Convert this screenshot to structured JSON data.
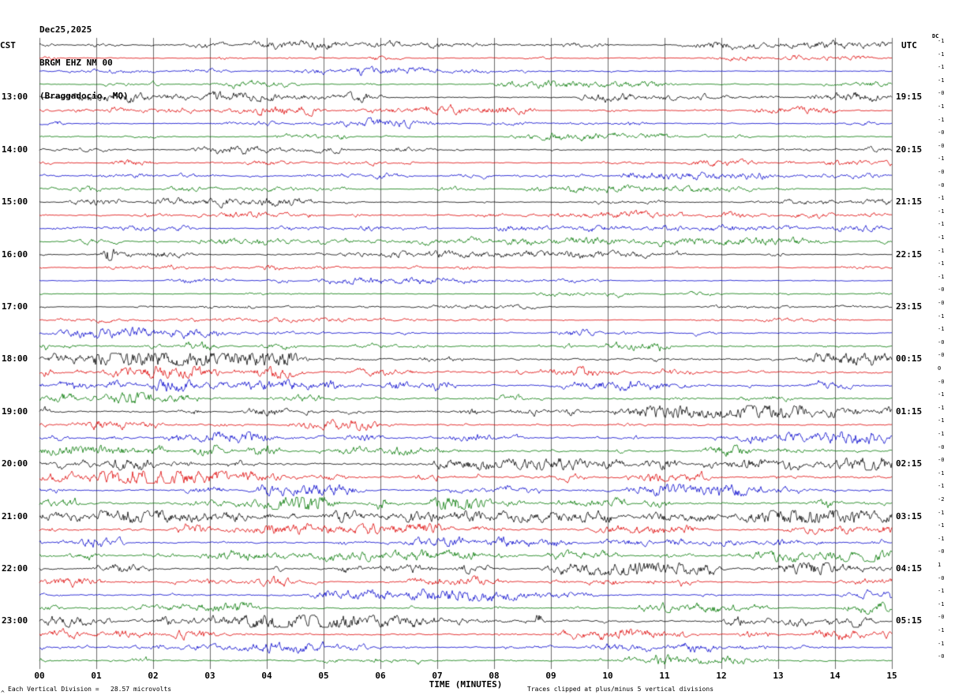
{
  "header": {
    "date": "Dec25,2025",
    "station": "BRGM EHZ NM 00",
    "location": "(Braggadocio, MO)"
  },
  "axes": {
    "left_label": "CST",
    "right_label": "UTC",
    "dc_label": "DC",
    "x_title": "TIME (MINUTES)",
    "x_ticks": [
      "00",
      "01",
      "02",
      "03",
      "04",
      "05",
      "06",
      "07",
      "08",
      "09",
      "10",
      "11",
      "12",
      "13",
      "14",
      "15"
    ]
  },
  "footer": {
    "scale_note": "Each Vertical Division =   28.57 microvolts",
    "clip_note": "Traces clipped at plus/minus 5 vertical divisions",
    "corner_mark": "^"
  },
  "chart_data": {
    "type": "line",
    "title": "Helicorder seismogram BRGM EHZ NM 00 (Braggadocio, MO) Dec25,2025",
    "x_range_minutes": [
      0,
      15
    ],
    "minutes_per_row": 15,
    "rows": 48,
    "start_cst": "12:00",
    "grid": true,
    "grid_color": "#6b6b6b",
    "colors": {
      "black": "#000000",
      "red": "#dd0000",
      "blue": "#0000cc",
      "green": "#007700"
    },
    "hour_labels": [
      {
        "row": 4,
        "cst": "13:00",
        "utc": "19:15"
      },
      {
        "row": 8,
        "cst": "14:00",
        "utc": "20:15"
      },
      {
        "row": 12,
        "cst": "15:00",
        "utc": "21:15"
      },
      {
        "row": 16,
        "cst": "16:00",
        "utc": "22:15"
      },
      {
        "row": 20,
        "cst": "17:00",
        "utc": "23:15"
      },
      {
        "row": 24,
        "cst": "18:00",
        "utc": "00:15"
      },
      {
        "row": 28,
        "cst": "19:00",
        "utc": "01:15"
      },
      {
        "row": 32,
        "cst": "20:00",
        "utc": "02:15"
      },
      {
        "row": 36,
        "cst": "21:00",
        "utc": "03:15"
      },
      {
        "row": 40,
        "cst": "22:00",
        "utc": "04:15"
      },
      {
        "row": 44,
        "cst": "23:00",
        "utc": "05:15"
      }
    ],
    "traces": [
      {
        "c": "black",
        "a": 0.55,
        "dc": "-1"
      },
      {
        "c": "red",
        "a": 0.55,
        "dc": "-1"
      },
      {
        "c": "blue",
        "a": 0.5,
        "dc": "-1"
      },
      {
        "c": "green",
        "a": 0.5,
        "dc": "-1"
      },
      {
        "c": "black",
        "a": 0.65,
        "dc": "-0"
      },
      {
        "c": "red",
        "a": 0.6,
        "dc": "-1"
      },
      {
        "c": "blue",
        "a": 0.55,
        "dc": "-1"
      },
      {
        "c": "green",
        "a": 0.55,
        "dc": "-0"
      },
      {
        "c": "black",
        "a": 0.5,
        "dc": "-0"
      },
      {
        "c": "red",
        "a": 0.55,
        "dc": "-1"
      },
      {
        "c": "blue",
        "a": 0.45,
        "dc": "-0"
      },
      {
        "c": "green",
        "a": 0.45,
        "dc": "-0"
      },
      {
        "c": "black",
        "a": 0.55,
        "dc": "-1"
      },
      {
        "c": "red",
        "a": 0.5,
        "dc": "-1"
      },
      {
        "c": "blue",
        "a": 0.5,
        "dc": "-1"
      },
      {
        "c": "green",
        "a": 0.5,
        "dc": "-1"
      },
      {
        "c": "black",
        "a": 0.5,
        "dc": "-1",
        "s": 1.25
      },
      {
        "c": "red",
        "a": 0.45,
        "dc": "-1"
      },
      {
        "c": "blue",
        "a": 0.45,
        "dc": "-1"
      },
      {
        "c": "green",
        "a": 0.4,
        "dc": "-0"
      },
      {
        "c": "black",
        "a": 0.35,
        "dc": "-0"
      },
      {
        "c": "red",
        "a": 0.3,
        "dc": "-1"
      },
      {
        "c": "blue",
        "a": 0.7,
        "dc": "-1"
      },
      {
        "c": "green",
        "a": 0.9,
        "dc": "-0"
      },
      {
        "c": "black",
        "a": 1.1,
        "dc": "-0"
      },
      {
        "c": "red",
        "a": 1.2,
        "dc": "0"
      },
      {
        "c": "blue",
        "a": 1.0,
        "dc": "-0"
      },
      {
        "c": "green",
        "a": 1.0,
        "dc": "-1"
      },
      {
        "c": "black",
        "a": 1.0,
        "dc": "-1"
      },
      {
        "c": "red",
        "a": 0.8,
        "dc": "-1"
      },
      {
        "c": "blue",
        "a": 0.9,
        "dc": "-1"
      },
      {
        "c": "green",
        "a": 1.0,
        "dc": "-0"
      },
      {
        "c": "black",
        "a": 1.2,
        "dc": "-0"
      },
      {
        "c": "red",
        "a": 1.2,
        "dc": "-1"
      },
      {
        "c": "blue",
        "a": 1.1,
        "dc": "-1"
      },
      {
        "c": "green",
        "a": 1.2,
        "dc": "-2"
      },
      {
        "c": "black",
        "a": 1.1,
        "dc": "-1"
      },
      {
        "c": "red",
        "a": 1.0,
        "dc": "-1"
      },
      {
        "c": "blue",
        "a": 0.9,
        "dc": "-1"
      },
      {
        "c": "green",
        "a": 0.9,
        "dc": "-0"
      },
      {
        "c": "black",
        "a": 0.95,
        "dc": "1",
        "s": 4.2
      },
      {
        "c": "red",
        "a": 0.7,
        "dc": "-0"
      },
      {
        "c": "blue",
        "a": 0.8,
        "dc": "-1"
      },
      {
        "c": "green",
        "a": 0.8,
        "dc": "-1"
      },
      {
        "c": "black",
        "a": 1.0,
        "dc": "-0",
        "s": 8.8
      },
      {
        "c": "red",
        "a": 0.9,
        "dc": "-1"
      },
      {
        "c": "blue",
        "a": 0.85,
        "dc": "-1"
      },
      {
        "c": "green",
        "a": 0.85,
        "dc": "-0"
      }
    ]
  }
}
